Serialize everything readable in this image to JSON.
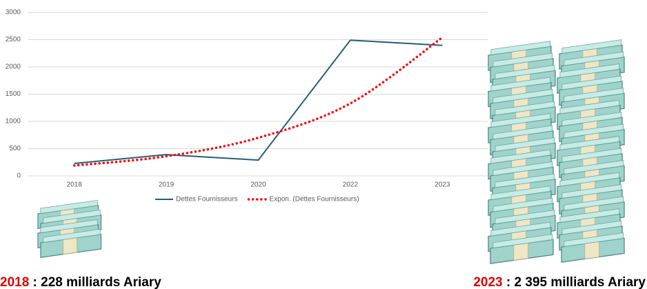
{
  "chart_data": {
    "type": "line",
    "categories": [
      "2018",
      "2019",
      "2020",
      "2022",
      "2023"
    ],
    "series": [
      {
        "name": "Dettes Fournisseurs",
        "color": "#215f77",
        "style": "solid",
        "values": [
          228,
          390,
          290,
          2490,
          2395
        ]
      },
      {
        "name": "Expon. (Dettes Fournisseurs)",
        "color": "#ff0000",
        "style": "dotted",
        "values": [
          190,
          360,
          700,
          1330,
          2540
        ]
      }
    ],
    "ylim": [
      0,
      3000
    ],
    "yticks": [
      0,
      500,
      1000,
      1500,
      2000,
      2500,
      3000
    ],
    "grid": true,
    "legend": "bottom",
    "annotations": [
      {
        "year": "2018",
        "text": " : 228 milliards Ariary"
      },
      {
        "year": "2023",
        "text": " : 2 395 milliards Ariary"
      }
    ]
  }
}
